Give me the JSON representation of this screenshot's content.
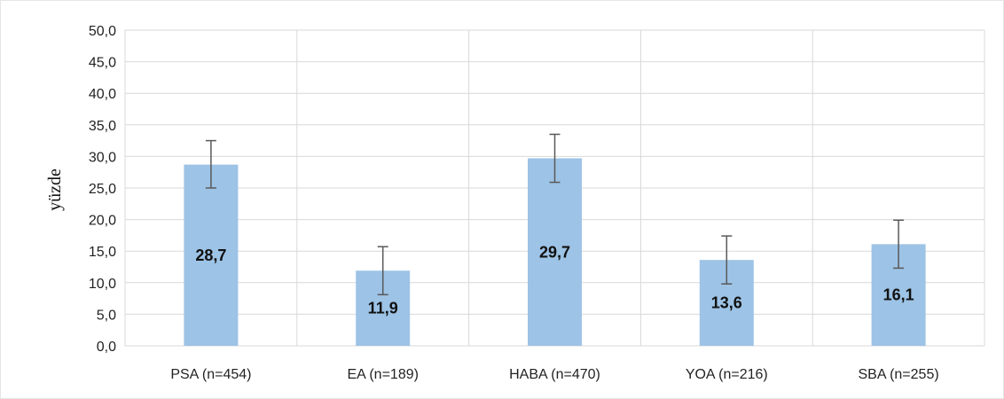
{
  "chart_data": {
    "type": "bar",
    "categories": [
      "PSA (n=454)",
      "EA (n=189)",
      "HABA (n=470)",
      "YOA (n=216)",
      "SBA (n=255)"
    ],
    "values": [
      28.7,
      11.9,
      29.7,
      13.6,
      16.1
    ],
    "data_labels": [
      "28,7",
      "11,9",
      "29,7",
      "13,6",
      "16,1"
    ],
    "error_bars": [
      {
        "low": 25.0,
        "high": 32.5
      },
      {
        "low": 8.1,
        "high": 15.7
      },
      {
        "low": 25.9,
        "high": 33.5
      },
      {
        "low": 9.8,
        "high": 17.4
      },
      {
        "low": 12.3,
        "high": 19.9
      }
    ],
    "title": "",
    "xlabel": "",
    "ylabel": "yüzde",
    "ylim": [
      0,
      50
    ],
    "yticks": [
      0,
      5,
      10,
      15,
      20,
      25,
      30,
      35,
      40,
      45,
      50
    ],
    "ytick_labels": [
      "0,0",
      "5,0",
      "10,0",
      "15,0",
      "20,0",
      "25,0",
      "30,0",
      "35,0",
      "40,0",
      "45,0",
      "50,0"
    ],
    "grid": true,
    "colors": {
      "bar": "#9DC3E6",
      "grid": "#D9D9D9",
      "error_bar": "#595959"
    }
  }
}
